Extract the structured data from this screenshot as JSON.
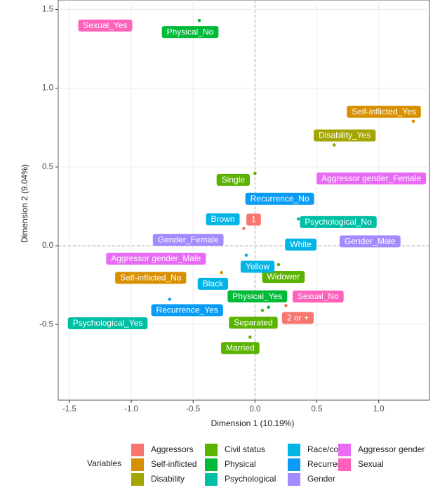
{
  "chart_data": {
    "type": "scatter",
    "x_label": "Dimension 1 (10.19%)",
    "y_label": "Dimension 2 (9.04%)",
    "legend_title": "Variables",
    "xlim": [
      -1.59,
      1.41
    ],
    "ylim": [
      -0.98,
      1.56
    ],
    "xticks": [
      -1.5,
      {
        "value": -1,
        "label": "-1.0"
      },
      -0.5,
      {
        "value": 0,
        "label": "0.0"
      },
      0.5,
      {
        "value": 1,
        "label": "1.0"
      }
    ],
    "yticks": [
      -0.5,
      {
        "value": 0,
        "label": "0.0"
      },
      0.5,
      {
        "value": 1,
        "label": "1.0"
      },
      1.5
    ],
    "grid": true,
    "series": [
      {
        "name": "Aggressors",
        "color": "#F8766D",
        "x": [
          -0.09,
          0.25
        ],
        "y": [
          0.11,
          -0.38
        ],
        "labels": [
          "1",
          "2 or +"
        ]
      },
      {
        "name": "Self-inflicted",
        "color": "#D89000",
        "x": [
          1.28,
          -0.27
        ],
        "y": [
          0.79,
          -0.17
        ],
        "labels": [
          "Self-inflicted_Yes",
          "Self-inflicted_No"
        ]
      },
      {
        "name": "Disability",
        "color": "#A3A500",
        "x": [
          0.64
        ],
        "y": [
          0.64
        ],
        "labels": [
          "Disability_Yes"
        ]
      },
      {
        "name": "Civil status",
        "color": "#5BB300",
        "x": [
          0.0,
          0.19,
          0.06,
          -0.04
        ],
        "y": [
          0.46,
          -0.12,
          -0.41,
          -0.58
        ],
        "labels": [
          "Single",
          "Widower",
          "Separated",
          "Married"
        ]
      },
      {
        "name": "Physical",
        "color": "#00BA38",
        "x": [
          -0.45,
          0.11
        ],
        "y": [
          1.43,
          -0.39
        ],
        "labels": [
          "Physical_No",
          "Physical_Yes"
        ]
      },
      {
        "name": "Psychological",
        "color": "#00BFA4",
        "x": [
          0.35,
          -1.19
        ],
        "y": [
          0.17,
          -0.49
        ],
        "labels": [
          "Psychological_No",
          "Psychological_Yes"
        ]
      },
      {
        "name": "Race/color",
        "color": "#00B4E6",
        "x": [
          -0.26,
          0.37,
          -0.07,
          -0.34
        ],
        "y": [
          0.17,
          0.01,
          -0.06,
          -0.24
        ],
        "labels": [
          "Brown",
          "White",
          "Yellow",
          "Black"
        ]
      },
      {
        "name": "Recurrence",
        "color": "#0A9CF5",
        "x": [
          0.2,
          -0.69
        ],
        "y": [
          0.3,
          -0.34
        ],
        "labels": [
          "Recurrence_No",
          "Recurrence_Yes"
        ]
      },
      {
        "name": "Gender",
        "color": "#A58AFF",
        "x": [
          -0.54,
          0.93
        ],
        "y": [
          0.04,
          0.03
        ],
        "labels": [
          "Gender_Female",
          "Gender_Male"
        ]
      },
      {
        "name": "Aggressor gender",
        "color": "#E76BF3",
        "x": [
          0.94,
          -0.8
        ],
        "y": [
          0.43,
          -0.08
        ],
        "labels": [
          "Aggressor gender_Female",
          "Aggressor gender_Male"
        ]
      },
      {
        "name": "Sexual",
        "color": "#FF62BC",
        "x": [
          -1.21,
          0.51
        ],
        "y": [
          1.4,
          -0.32
        ],
        "labels": [
          "Sexual_Yes",
          "Sexual_No"
        ]
      }
    ]
  }
}
